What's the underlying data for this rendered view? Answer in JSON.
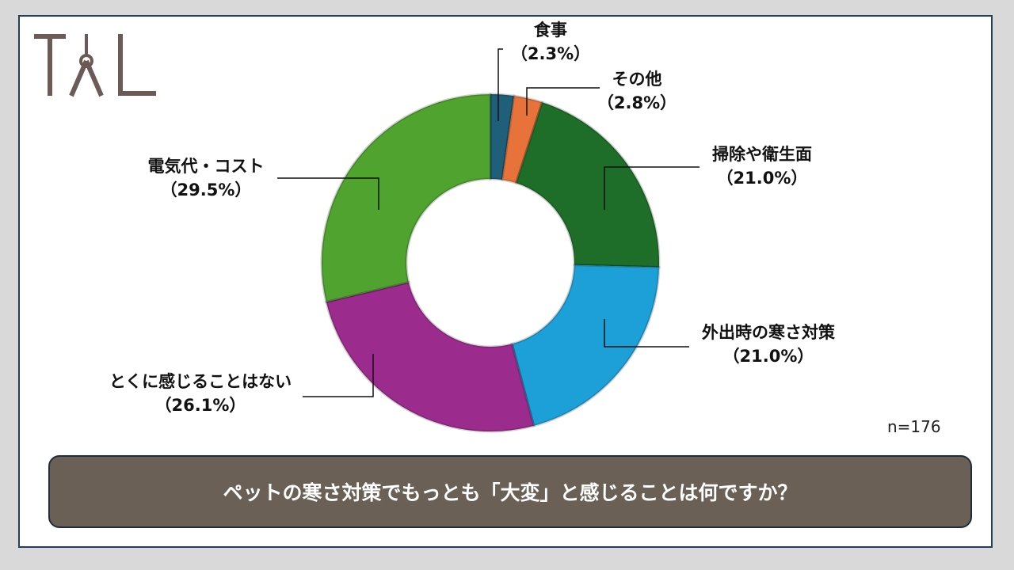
{
  "logo": {
    "text": "TAL",
    "color": "#6b5a55"
  },
  "n_label": "n=176",
  "question": "ペットの寒さ対策でもっとも「大変」と感じることは何ですか？",
  "chart_data": {
    "type": "pie",
    "donut": true,
    "title": "",
    "slices": [
      {
        "label": "食事",
        "pct_text": "（2.3%）",
        "value": 2.3,
        "color": "#1f5f7a"
      },
      {
        "label": "その他",
        "pct_text": "（2.8%）",
        "value": 2.8,
        "color": "#e8733a"
      },
      {
        "label": "掃除や衛生面",
        "pct_text": "（21.0%）",
        "value": 21.0,
        "color": "#1e6e2a"
      },
      {
        "label": "外出時の寒さ対策",
        "pct_text": "（21.0%）",
        "value": 21.0,
        "color": "#1da0d8"
      },
      {
        "label": "とくに感じることはない",
        "pct_text": "（26.1%）",
        "value": 26.1,
        "color": "#9c2b8e"
      },
      {
        "label": "電気代・コスト",
        "pct_text": "（29.5%）",
        "value": 29.5,
        "color": "#4fa32e"
      }
    ]
  }
}
